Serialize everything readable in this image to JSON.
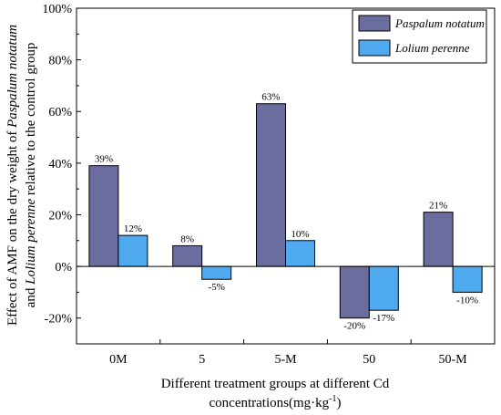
{
  "chart_data": {
    "type": "bar",
    "categories": [
      "0M",
      "5",
      "5-M",
      "50",
      "50-M"
    ],
    "series": [
      {
        "name": "Paspalum notatum",
        "values": [
          39,
          8,
          63,
          -20,
          21
        ],
        "labels": [
          "39%",
          "8%",
          "63%",
          "-20%",
          "21%"
        ],
        "color": "#6b6d9e"
      },
      {
        "name": "Lolium perenne",
        "values": [
          12,
          -5,
          10,
          -17,
          -10
        ],
        "labels": [
          "12%",
          "-5%",
          "10%",
          "-17%",
          "-10%"
        ],
        "color": "#4faaf0"
      }
    ],
    "ylim": [
      -30,
      100
    ],
    "yticks": [
      -20,
      0,
      20,
      40,
      60,
      80,
      100
    ],
    "ytick_labels": [
      "-20%",
      "0%",
      "20%",
      "40%",
      "60%",
      "80%",
      "100%"
    ],
    "xlabel_line1": "Different treatment groups at different Cd",
    "xlabel_line2": "concentrations(mg·kg",
    "xlabel_sup": "-1",
    "xlabel_end": ")",
    "ylabel_line1_pre": "Effect of AMF on the dry weight of ",
    "ylabel_line1_italic": "Paspalum notatum",
    "ylabel_line2_pre": "and ",
    "ylabel_line2_italic": "Lolium perenne",
    "ylabel_line2_post": " relative to the control group",
    "legend_position": "top-right",
    "grid": false
  }
}
